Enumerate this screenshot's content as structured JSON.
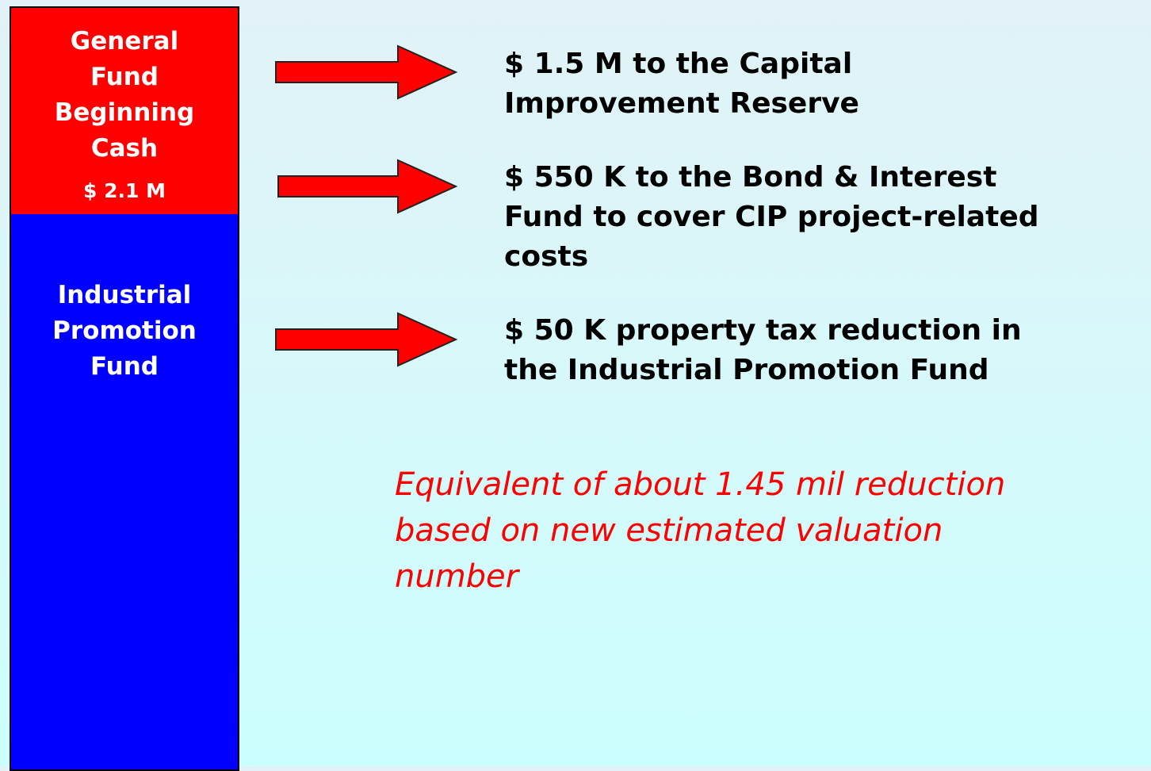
{
  "left": {
    "top": {
      "label": [
        "General",
        "Fund",
        "Beginning",
        "Cash"
      ],
      "amount": "$ 2.1 M"
    },
    "bottom": {
      "label": [
        "Industrial",
        "Promotion",
        "Fund"
      ]
    }
  },
  "items": [
    {
      "lines": [
        "$ 1.5 M to the Capital",
        "Improvement Reserve"
      ]
    },
    {
      "lines": [
        "$ 550 K to the Bond & Interest",
        "Fund to cover CIP project-related",
        "costs"
      ]
    },
    {
      "lines": [
        "$ 50 K property tax reduction in",
        "the Industrial Promotion Fund"
      ]
    }
  ],
  "note": [
    "Equivalent of about 1.45 mil reduction",
    "based on new estimated valuation",
    "number"
  ]
}
